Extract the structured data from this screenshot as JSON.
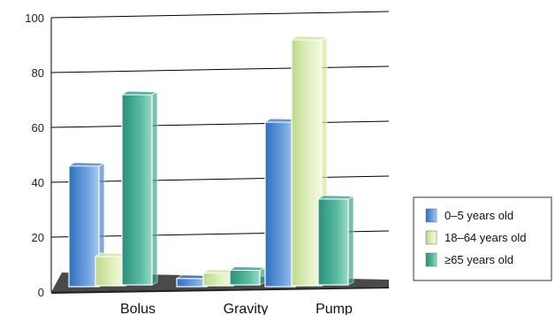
{
  "chart_data": {
    "type": "bar",
    "categories": [
      "Bolus",
      "Gravity",
      "Pump"
    ],
    "series": [
      {
        "name": "0–5 years old",
        "values": [
          44,
          3,
          60
        ]
      },
      {
        "name": "18–64 years old",
        "values": [
          11,
          5,
          90
        ]
      },
      {
        "name": "≥65 years old",
        "values": [
          70,
          6,
          32
        ]
      }
    ],
    "ylim": [
      0,
      100
    ],
    "yticks": [
      "0",
      "20",
      "40",
      "60",
      "80",
      "100"
    ],
    "grid": true,
    "legend_position": "right",
    "colors": [
      "#4f86cc",
      "#d3e7a0",
      "#3fa58c"
    ],
    "style": "3d"
  }
}
